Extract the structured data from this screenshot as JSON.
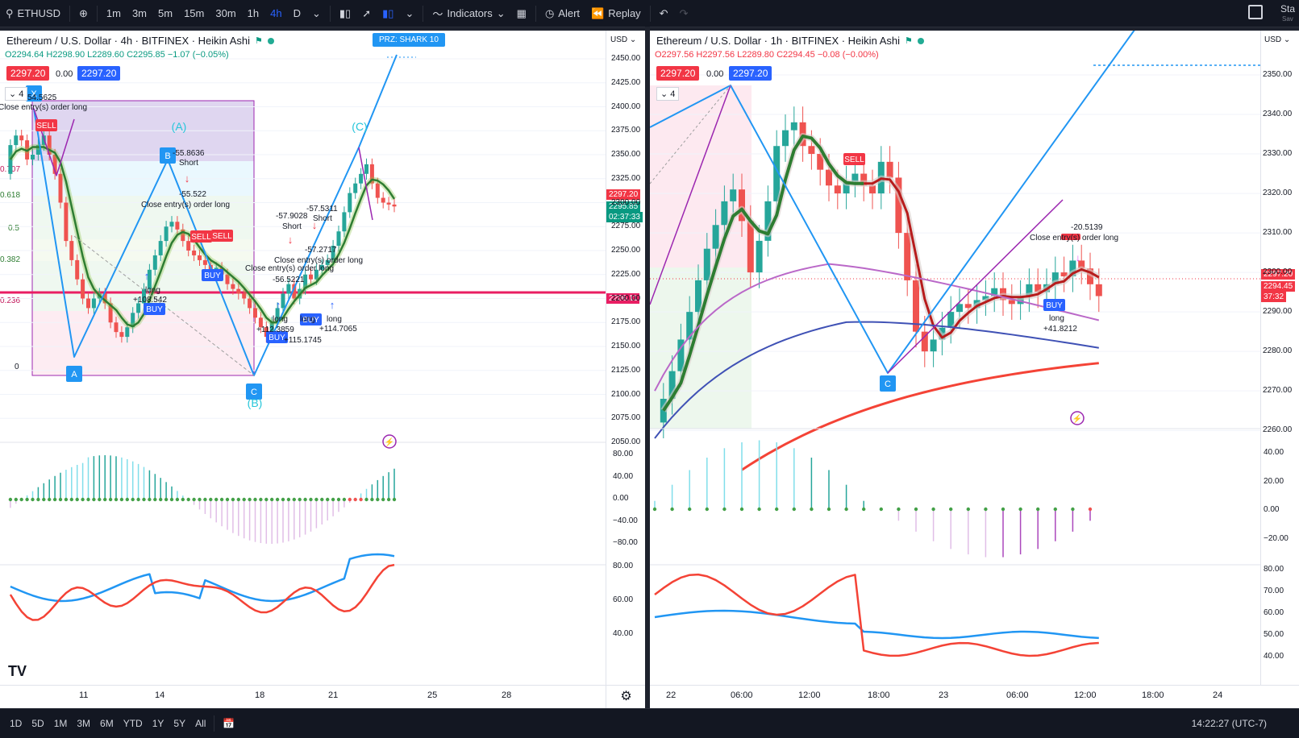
{
  "toolbar": {
    "symbol": "ETHUSD",
    "intervals": [
      "1m",
      "3m",
      "5m",
      "15m",
      "30m",
      "1h",
      "4h",
      "D"
    ],
    "active_interval": "4h",
    "indicators_label": "Indicators",
    "alert_label": "Alert",
    "replay_label": "Replay",
    "right_text": "Sta",
    "right_subtext": "Sav"
  },
  "left_chart": {
    "title": "Ethereum / U.S. Dollar · 4h · BITFINEX · Heikin Ashi",
    "ohlc": "O2294.64 H2298.90 L2289.60 C2295.85 −1.07 (−0.05%)",
    "sell_price": "2297.20",
    "spread": "0.00",
    "buy_price": "2297.20",
    "counter": "4",
    "currency": "USD",
    "y_ticks": [
      "2450.00",
      "2425.00",
      "2400.00",
      "2375.00",
      "2350.00",
      "2325.00",
      "2300.00",
      "2275.00",
      "2250.00",
      "2225.00",
      "2200.00",
      "2175.00",
      "2150.00",
      "2125.00",
      "2100.00",
      "2075.00",
      "2050.00"
    ],
    "last_price": "2297.20",
    "close_price": "2295.85",
    "countdown": "02:37:33",
    "line_price": "2206.11",
    "osc_ticks": [
      "80.00",
      "40.00",
      "0.00",
      "−40.00",
      "−80.00"
    ],
    "rsi_ticks": [
      "80.00",
      "60.00",
      "40.00"
    ],
    "x_ticks": [
      "11",
      "14",
      "18",
      "21",
      "25",
      "28"
    ],
    "fib_levels": [
      "0.707",
      "0.618",
      "0.5",
      "0.382",
      "0.236",
      "0"
    ],
    "prz_label": "PRZ: SHARK 10",
    "wave_labels": [
      "(A)",
      "(B)",
      "(C)"
    ],
    "points": [
      "A",
      "B",
      "C",
      "X"
    ],
    "annotations": [
      "54.5625",
      "Close entry(s) order long",
      "-55.8636",
      "Short",
      "-55.522",
      "Close entry(s) order long",
      "-57.9028",
      "Short",
      "-57.5311",
      "Short",
      "-57.2717",
      "Close entry(s) order long",
      "Close entry(s) order long",
      "-56.5221",
      "long",
      "+108.542",
      "long",
      "+112.3859",
      "long",
      "+115.1745",
      "long",
      "+114.7065"
    ],
    "signals": [
      "SELL",
      "SELL",
      "SELL",
      "BUY",
      "BUY",
      "BUY",
      "BUY"
    ]
  },
  "right_chart": {
    "title": "Ethereum / U.S. Dollar · 1h · BITFINEX · Heikin Ashi",
    "ohlc": "O2297.56 H2297.56 L2289.80 C2294.45 −0.08 (−0.00%)",
    "sell_price": "2297.20",
    "spread": "0.00",
    "buy_price": "2297.20",
    "counter": "4",
    "currency": "USD",
    "y_ticks": [
      "2350.00",
      "2340.00",
      "2330.00",
      "2320.00",
      "2310.00",
      "2300.00",
      "2290.00",
      "2280.00",
      "2270.00",
      "2260.00"
    ],
    "last_price": "2297.20",
    "close_price": "2294.45",
    "countdown": "37:32",
    "osc_ticks": [
      "40.00",
      "20.00",
      "0.00",
      "−20.00"
    ],
    "rsi_ticks": [
      "80.00",
      "70.00",
      "60.00",
      "50.00",
      "40.00"
    ],
    "x_ticks": [
      "22",
      "06:00",
      "12:00",
      "18:00",
      "23",
      "06:00",
      "12:00",
      "18:00",
      "24"
    ],
    "annotations": [
      "-20.5139",
      "Close entry(s) order long",
      "long",
      "+41.8212"
    ],
    "signals": [
      "SELL",
      "BUY"
    ],
    "points": [
      "C"
    ]
  },
  "bottom": {
    "ranges": [
      "1D",
      "5D",
      "1M",
      "3M",
      "6M",
      "YTD",
      "1Y",
      "5Y",
      "All"
    ],
    "clock": "14:22:27 (UTC-7)"
  },
  "colors": {
    "up": "#26a69a",
    "down": "#ef5350",
    "accent": "#2962ff",
    "pattern": "#2196f3",
    "line": "#e91e63"
  }
}
